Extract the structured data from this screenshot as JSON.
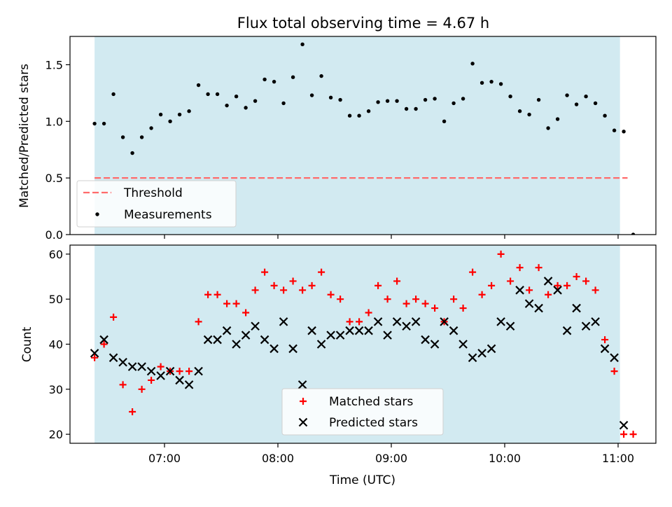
{
  "title": "Flux total observing time = 4.67 h",
  "colors": {
    "shade": "#add8e6",
    "threshold": "#ff6b6b",
    "matched": "#ff0000",
    "predicted": "#000000"
  },
  "chart_data": [
    {
      "type": "scatter",
      "ylabel": "Matched/Predicted stars",
      "xlim": [
        "06:10",
        "11:20"
      ],
      "ylim": [
        0,
        1.75
      ],
      "yticks": [
        0.0,
        0.5,
        1.0,
        1.5
      ],
      "yticklabels": [
        "0.0",
        "0.5",
        "1.0",
        "1.5"
      ],
      "xticks": [
        "07:00",
        "08:00",
        "09:00",
        "10:00",
        "11:00"
      ],
      "shaded_span": [
        "06:23",
        "11:01"
      ],
      "threshold": {
        "name": "Threshold",
        "value": 0.5,
        "x_range": [
          "06:23",
          "11:05"
        ]
      },
      "legend": [
        "Threshold",
        "Measurements"
      ],
      "legend_position": "lower-left",
      "series": [
        {
          "name": "Measurements",
          "points": [
            [
              "06:23",
              0.98
            ],
            [
              "06:28",
              0.98
            ],
            [
              "06:33",
              1.24
            ],
            [
              "06:38",
              0.86
            ],
            [
              "06:43",
              0.72
            ],
            [
              "06:48",
              0.86
            ],
            [
              "06:53",
              0.94
            ],
            [
              "06:58",
              1.06
            ],
            [
              "07:03",
              1.0
            ],
            [
              "07:08",
              1.06
            ],
            [
              "07:13",
              1.09
            ],
            [
              "07:18",
              1.32
            ],
            [
              "07:23",
              1.24
            ],
            [
              "07:28",
              1.24
            ],
            [
              "07:33",
              1.14
            ],
            [
              "07:38",
              1.22
            ],
            [
              "07:43",
              1.12
            ],
            [
              "07:48",
              1.18
            ],
            [
              "07:53",
              1.37
            ],
            [
              "07:58",
              1.35
            ],
            [
              "08:03",
              1.16
            ],
            [
              "08:08",
              1.39
            ],
            [
              "08:13",
              1.68
            ],
            [
              "08:18",
              1.23
            ],
            [
              "08:23",
              1.4
            ],
            [
              "08:28",
              1.21
            ],
            [
              "08:33",
              1.19
            ],
            [
              "08:38",
              1.05
            ],
            [
              "08:43",
              1.05
            ],
            [
              "08:48",
              1.09
            ],
            [
              "08:53",
              1.17
            ],
            [
              "08:58",
              1.18
            ],
            [
              "09:03",
              1.18
            ],
            [
              "09:08",
              1.11
            ],
            [
              "09:13",
              1.11
            ],
            [
              "09:18",
              1.19
            ],
            [
              "09:23",
              1.2
            ],
            [
              "09:28",
              1.0
            ],
            [
              "09:33",
              1.16
            ],
            [
              "09:38",
              1.2
            ],
            [
              "09:43",
              1.51
            ],
            [
              "09:48",
              1.34
            ],
            [
              "09:53",
              1.35
            ],
            [
              "09:58",
              1.33
            ],
            [
              "10:03",
              1.22
            ],
            [
              "10:08",
              1.09
            ],
            [
              "10:13",
              1.06
            ],
            [
              "10:18",
              1.19
            ],
            [
              "10:23",
              0.94
            ],
            [
              "10:28",
              1.02
            ],
            [
              "10:33",
              1.23
            ],
            [
              "10:38",
              1.15
            ],
            [
              "10:43",
              1.22
            ],
            [
              "10:48",
              1.16
            ],
            [
              "10:53",
              1.05
            ],
            [
              "10:58",
              0.92
            ],
            [
              "11:03",
              0.91
            ],
            [
              "11:08",
              0.0
            ]
          ]
        }
      ]
    },
    {
      "type": "scatter",
      "xlabel": "Time (UTC)",
      "ylabel": "Count",
      "xlim": [
        "06:10",
        "11:20"
      ],
      "ylim": [
        18,
        62
      ],
      "yticks": [
        20,
        30,
        40,
        50,
        60
      ],
      "yticklabels": [
        "20",
        "30",
        "40",
        "50",
        "60"
      ],
      "xticks": [
        "07:00",
        "08:00",
        "09:00",
        "10:00",
        "11:00"
      ],
      "shaded_span": [
        "06:23",
        "11:01"
      ],
      "legend": [
        "Matched stars",
        "Predicted stars"
      ],
      "legend_position": "lower-center",
      "series": [
        {
          "name": "Matched stars",
          "points": [
            [
              "06:23",
              37
            ],
            [
              "06:28",
              40
            ],
            [
              "06:33",
              46
            ],
            [
              "06:38",
              31
            ],
            [
              "06:43",
              25
            ],
            [
              "06:48",
              30
            ],
            [
              "06:53",
              32
            ],
            [
              "06:58",
              35
            ],
            [
              "07:03",
              34
            ],
            [
              "07:08",
              34
            ],
            [
              "07:13",
              34
            ],
            [
              "07:18",
              45
            ],
            [
              "07:23",
              51
            ],
            [
              "07:28",
              51
            ],
            [
              "07:33",
              49
            ],
            [
              "07:38",
              49
            ],
            [
              "07:43",
              47
            ],
            [
              "07:48",
              52
            ],
            [
              "07:53",
              56
            ],
            [
              "07:58",
              53
            ],
            [
              "08:03",
              52
            ],
            [
              "08:08",
              54
            ],
            [
              "08:13",
              52
            ],
            [
              "08:18",
              53
            ],
            [
              "08:23",
              56
            ],
            [
              "08:28",
              51
            ],
            [
              "08:33",
              50
            ],
            [
              "08:38",
              45
            ],
            [
              "08:43",
              45
            ],
            [
              "08:48",
              47
            ],
            [
              "08:53",
              53
            ],
            [
              "08:58",
              50
            ],
            [
              "09:03",
              54
            ],
            [
              "09:08",
              49
            ],
            [
              "09:13",
              50
            ],
            [
              "09:18",
              49
            ],
            [
              "09:23",
              48
            ],
            [
              "09:28",
              45
            ],
            [
              "09:33",
              50
            ],
            [
              "09:38",
              48
            ],
            [
              "09:43",
              56
            ],
            [
              "09:48",
              51
            ],
            [
              "09:53",
              53
            ],
            [
              "09:58",
              60
            ],
            [
              "10:03",
              54
            ],
            [
              "10:08",
              57
            ],
            [
              "10:13",
              52
            ],
            [
              "10:18",
              57
            ],
            [
              "10:23",
              51
            ],
            [
              "10:28",
              53
            ],
            [
              "10:33",
              53
            ],
            [
              "10:38",
              55
            ],
            [
              "10:43",
              54
            ],
            [
              "10:48",
              52
            ],
            [
              "10:53",
              41
            ],
            [
              "10:58",
              34
            ],
            [
              "11:03",
              20
            ],
            [
              "11:08",
              20
            ]
          ]
        },
        {
          "name": "Predicted stars",
          "points": [
            [
              "06:23",
              38
            ],
            [
              "06:28",
              41
            ],
            [
              "06:33",
              37
            ],
            [
              "06:38",
              36
            ],
            [
              "06:43",
              35
            ],
            [
              "06:48",
              35
            ],
            [
              "06:53",
              34
            ],
            [
              "06:58",
              33
            ],
            [
              "07:03",
              34
            ],
            [
              "07:08",
              32
            ],
            [
              "07:13",
              31
            ],
            [
              "07:18",
              34
            ],
            [
              "07:23",
              41
            ],
            [
              "07:28",
              41
            ],
            [
              "07:33",
              43
            ],
            [
              "07:38",
              40
            ],
            [
              "07:43",
              42
            ],
            [
              "07:48",
              44
            ],
            [
              "07:53",
              41
            ],
            [
              "07:58",
              39
            ],
            [
              "08:03",
              45
            ],
            [
              "08:08",
              39
            ],
            [
              "08:13",
              31
            ],
            [
              "08:18",
              43
            ],
            [
              "08:23",
              40
            ],
            [
              "08:28",
              42
            ],
            [
              "08:33",
              42
            ],
            [
              "08:38",
              43
            ],
            [
              "08:43",
              43
            ],
            [
              "08:48",
              43
            ],
            [
              "08:53",
              45
            ],
            [
              "08:58",
              42
            ],
            [
              "09:03",
              45
            ],
            [
              "09:08",
              44
            ],
            [
              "09:13",
              45
            ],
            [
              "09:18",
              41
            ],
            [
              "09:23",
              40
            ],
            [
              "09:28",
              45
            ],
            [
              "09:33",
              43
            ],
            [
              "09:38",
              40
            ],
            [
              "09:43",
              37
            ],
            [
              "09:48",
              38
            ],
            [
              "09:53",
              39
            ],
            [
              "09:58",
              45
            ],
            [
              "10:03",
              44
            ],
            [
              "10:08",
              52
            ],
            [
              "10:13",
              49
            ],
            [
              "10:18",
              48
            ],
            [
              "10:23",
              54
            ],
            [
              "10:28",
              52
            ],
            [
              "10:33",
              43
            ],
            [
              "10:38",
              48
            ],
            [
              "10:43",
              44
            ],
            [
              "10:48",
              45
            ],
            [
              "10:53",
              39
            ],
            [
              "10:58",
              37
            ],
            [
              "11:03",
              22
            ]
          ]
        }
      ]
    }
  ]
}
